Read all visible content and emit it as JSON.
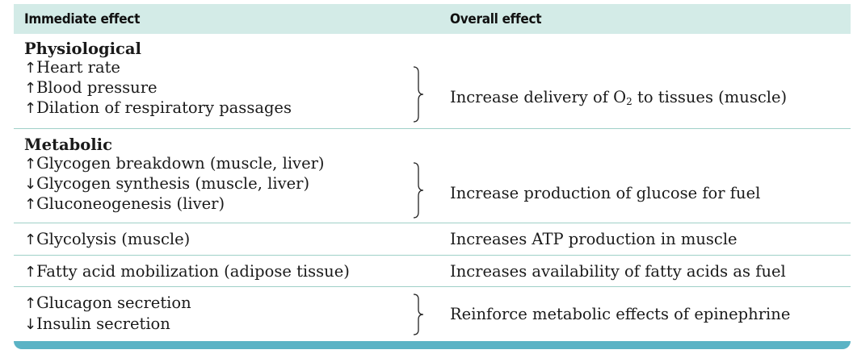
{
  "header": {
    "immediate": "Immediate effect",
    "overall": "Overall effect"
  },
  "physiological": {
    "title": "Physiological",
    "items": [
      {
        "arrow": "↑",
        "text": "Heart rate"
      },
      {
        "arrow": "↑",
        "text": "Blood pressure"
      },
      {
        "arrow": "↑",
        "text": "Dilation of respiratory passages"
      }
    ],
    "overall_pre": "Increase delivery of O",
    "overall_sub": "2",
    "overall_post": " to tissues (muscle)"
  },
  "metabolic": {
    "title": "Metabolic",
    "items": [
      {
        "arrow": "↑",
        "text": "Glycogen breakdown (muscle, liver)"
      },
      {
        "arrow": "↓",
        "text": "Glycogen synthesis (muscle, liver)"
      },
      {
        "arrow": "↑",
        "text": "Gluconeogenesis (liver)"
      }
    ],
    "overall": "Increase production of glucose for fuel"
  },
  "glycolysis": {
    "arrow": "↑",
    "text": "Glycolysis (muscle)",
    "overall": "Increases ATP production in muscle"
  },
  "fatty": {
    "arrow": "↑",
    "text": "Fatty acid mobilization (adipose tissue)",
    "overall": "Increases availability of fatty acids as fuel"
  },
  "hormones": {
    "items": [
      {
        "arrow": "↑",
        "text": "Glucagon secretion"
      },
      {
        "arrow": "↓",
        "text": "Insulin secretion"
      }
    ],
    "overall": "Reinforce metabolic effects of epinephrine"
  }
}
